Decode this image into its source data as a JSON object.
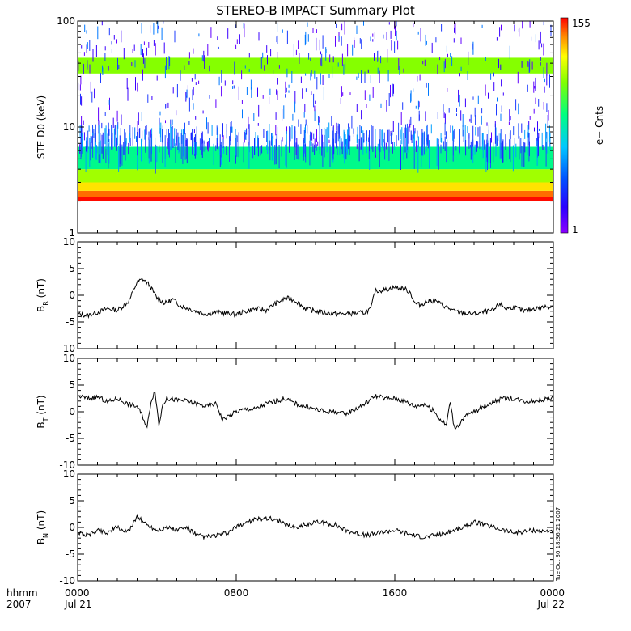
{
  "title": "STEREO-B IMPACT Summary Plot",
  "timestamp_note": "Tue Oct 30 18:36:21 2007",
  "time_axis": {
    "row1_labels": [
      "hhmm",
      "0000",
      "0800",
      "1600",
      "0000"
    ],
    "row2_labels": [
      "2007",
      "Jul 21",
      "",
      "",
      "Jul 22"
    ],
    "range_hours": [
      0,
      24
    ]
  },
  "colorbar": {
    "label": "e− Cnts",
    "min_label": "1",
    "max_label": "155",
    "range": [
      1,
      155
    ]
  },
  "chart_data": [
    {
      "type": "heatmap",
      "ylabel": "STE D0 (keV)",
      "yscale": "log",
      "ylim": [
        1,
        100
      ],
      "ytick_labels": [
        "1",
        "10",
        "100"
      ],
      "bands": [
        {
          "energy_keV": [
            2.0,
            2.2
          ],
          "counts": 150
        },
        {
          "energy_keV": [
            2.2,
            2.5
          ],
          "counts": 110
        },
        {
          "energy_keV": [
            2.5,
            3.0
          ],
          "counts": 70
        },
        {
          "energy_keV": [
            3.0,
            4.0
          ],
          "counts": 40
        },
        {
          "energy_keV": [
            4.0,
            6.5
          ],
          "counts": 15
        },
        {
          "energy_keV": [
            32,
            45
          ],
          "counts": 35
        }
      ]
    },
    {
      "type": "line",
      "ylabel": "B_R (nT)",
      "ylabel_main": "B",
      "ylabel_sub": "R",
      "ylabel_unit": " (nT)",
      "ylim": [
        -10,
        10
      ],
      "yticks": [
        -10,
        -5,
        0,
        5,
        10
      ],
      "x": [
        0,
        0.5,
        1,
        1.5,
        2,
        2.3,
        2.6,
        3,
        3.3,
        3.6,
        4,
        4.4,
        4.8,
        5.2,
        5.6,
        6,
        6.5,
        7,
        7.5,
        8,
        8.5,
        9,
        9.5,
        10,
        10.5,
        11,
        11.5,
        12,
        12.5,
        13,
        13.5,
        14,
        14.5,
        14.8,
        15,
        15.5,
        16,
        16.5,
        16.8,
        17,
        17.3,
        17.6,
        18,
        18.5,
        19,
        19.5,
        20,
        20.5,
        21,
        21.3,
        21.6,
        22,
        22.5,
        23,
        23.5,
        24
      ],
      "y": [
        -3.5,
        -3.8,
        -3.2,
        -2.5,
        -2.8,
        -2,
        -1,
        2.5,
        3,
        2,
        -0.5,
        -1.5,
        -0.8,
        -2,
        -2.5,
        -3,
        -3.5,
        -3.2,
        -3.4,
        -3.6,
        -3,
        -2.5,
        -2.8,
        -1.5,
        -0.5,
        -1,
        -2.5,
        -3,
        -3.3,
        -3.5,
        -3.5,
        -3.4,
        -3.2,
        -2.5,
        0.8,
        1,
        1.5,
        1.2,
        0.5,
        -1.5,
        -1.8,
        -1.2,
        -1,
        -2,
        -3,
        -3.4,
        -3.5,
        -3.2,
        -2.8,
        -1.5,
        -2.5,
        -2.2,
        -3,
        -2.5,
        -2.2,
        -2
      ]
    },
    {
      "type": "line",
      "ylabel": "B_T (nT)",
      "ylabel_main": "B",
      "ylabel_sub": "T",
      "ylabel_unit": " (nT)",
      "ylim": [
        -10,
        10
      ],
      "yticks": [
        -10,
        -5,
        0,
        5,
        10
      ],
      "x": [
        0,
        0.5,
        1,
        1.5,
        2,
        2.5,
        3,
        3.3,
        3.5,
        3.7,
        3.9,
        4.1,
        4.3,
        4.5,
        5,
        5.5,
        6,
        6.5,
        7,
        7.3,
        7.5,
        8,
        8.5,
        9,
        9.5,
        10,
        10.5,
        11,
        11.5,
        12,
        12.5,
        13,
        13.5,
        14,
        14.5,
        15,
        15.5,
        16,
        16.5,
        17,
        17.5,
        18,
        18.3,
        18.6,
        18.8,
        19,
        19.2,
        19.5,
        20,
        20.5,
        21,
        21.5,
        22,
        22.5,
        23,
        23.5,
        24
      ],
      "y": [
        3,
        2.5,
        2.8,
        1.8,
        2.5,
        1.5,
        1,
        -1,
        -3,
        2,
        4,
        -2.5,
        1.5,
        2.5,
        2.2,
        2,
        1.5,
        1,
        1.5,
        -1.5,
        -1,
        0,
        0.5,
        0.5,
        1.5,
        2,
        2.5,
        1.5,
        1,
        0.5,
        0,
        0,
        -0.5,
        0.5,
        1.5,
        3,
        2.5,
        2.5,
        2,
        1,
        1.5,
        0,
        -1.5,
        -2.5,
        2,
        -3,
        -2.5,
        -1,
        0,
        1,
        2,
        2.5,
        2.5,
        2,
        2,
        2.3,
        2.5
      ]
    },
    {
      "type": "line",
      "ylabel": "B_N (nT)",
      "ylabel_main": "B",
      "ylabel_sub": "N",
      "ylabel_unit": " (nT)",
      "ylim": [
        -10,
        10
      ],
      "yticks": [
        -10,
        -5,
        0,
        5,
        10
      ],
      "x": [
        0,
        0.5,
        1,
        1.5,
        2,
        2.5,
        3,
        3.5,
        4,
        4.5,
        5,
        5.5,
        6,
        6.5,
        7,
        7.5,
        8,
        8.5,
        9,
        9.5,
        10,
        10.5,
        11,
        11.5,
        12,
        12.5,
        13,
        13.5,
        14,
        14.5,
        15,
        15.5,
        16,
        16.5,
        17,
        17.5,
        18,
        18.5,
        19,
        19.5,
        20,
        20.5,
        21,
        21.5,
        22,
        22.5,
        23,
        23.5,
        24
      ],
      "y": [
        -1,
        -1.5,
        -0.5,
        -1,
        0,
        -1,
        2,
        0.5,
        -0.5,
        0,
        -0.5,
        0,
        -1.5,
        -1.8,
        -1.5,
        -1.2,
        0,
        1,
        1.5,
        1.8,
        1.5,
        0.5,
        0,
        0.5,
        1,
        0.8,
        0.5,
        -0.5,
        -1,
        -1.5,
        -1.2,
        -0.8,
        -0.5,
        -1,
        -1.5,
        -1.8,
        -1.5,
        -1.2,
        -0.5,
        0,
        1,
        0.5,
        0,
        -0.5,
        -1,
        -0.8,
        -0.5,
        -0.8,
        -0.5
      ]
    }
  ],
  "colors": {
    "line": "#000000",
    "axes": "#000000",
    "background": "#ffffff"
  }
}
